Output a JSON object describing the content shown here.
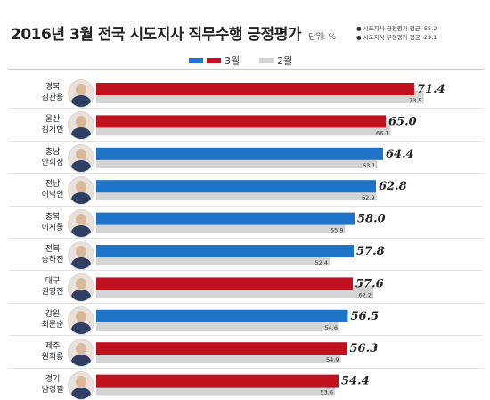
{
  "header": {
    "title": "2016년 3월 전국 시도지사 직무수행 긍정평가",
    "unit": "단위: %",
    "notes": [
      "● 시도지사 긍정평가 평균: 55.2",
      "● 시도지사 부정평가 평균: 29.1"
    ]
  },
  "colors": {
    "party_red": "#c0111f",
    "party_blue": "#1e74c6",
    "previous_gray": "#d4d4d4"
  },
  "chart_data": {
    "type": "bar",
    "orientation": "horizontal",
    "title": "2016년 3월 전국 시도지사 직무수행 긍정평가",
    "unit": "단위: %",
    "legend": [
      "3월",
      "2월"
    ],
    "xlim": [
      0,
      75
    ],
    "categories": [
      {
        "region": "경북",
        "name": "김관용"
      },
      {
        "region": "울산",
        "name": "김기현"
      },
      {
        "region": "충남",
        "name": "안희정"
      },
      {
        "region": "전남",
        "name": "이낙연"
      },
      {
        "region": "충북",
        "name": "이시종"
      },
      {
        "region": "전북",
        "name": "송하진"
      },
      {
        "region": "대구",
        "name": "권영진"
      },
      {
        "region": "강원",
        "name": "최문순"
      },
      {
        "region": "제주",
        "name": "원희룡"
      },
      {
        "region": "경기",
        "name": "남경필"
      }
    ],
    "series": [
      {
        "name": "3월",
        "values": [
          71.4,
          65.0,
          64.4,
          62.8,
          58.0,
          57.8,
          57.6,
          56.5,
          56.3,
          54.4
        ],
        "bar_colors": [
          "red",
          "red",
          "blue",
          "blue",
          "blue",
          "blue",
          "red",
          "blue",
          "red",
          "red"
        ]
      },
      {
        "name": "2월",
        "values": [
          73.5,
          66.1,
          63.1,
          62.9,
          55.9,
          52.4,
          62.2,
          54.6,
          54.9,
          53.6
        ]
      }
    ]
  }
}
